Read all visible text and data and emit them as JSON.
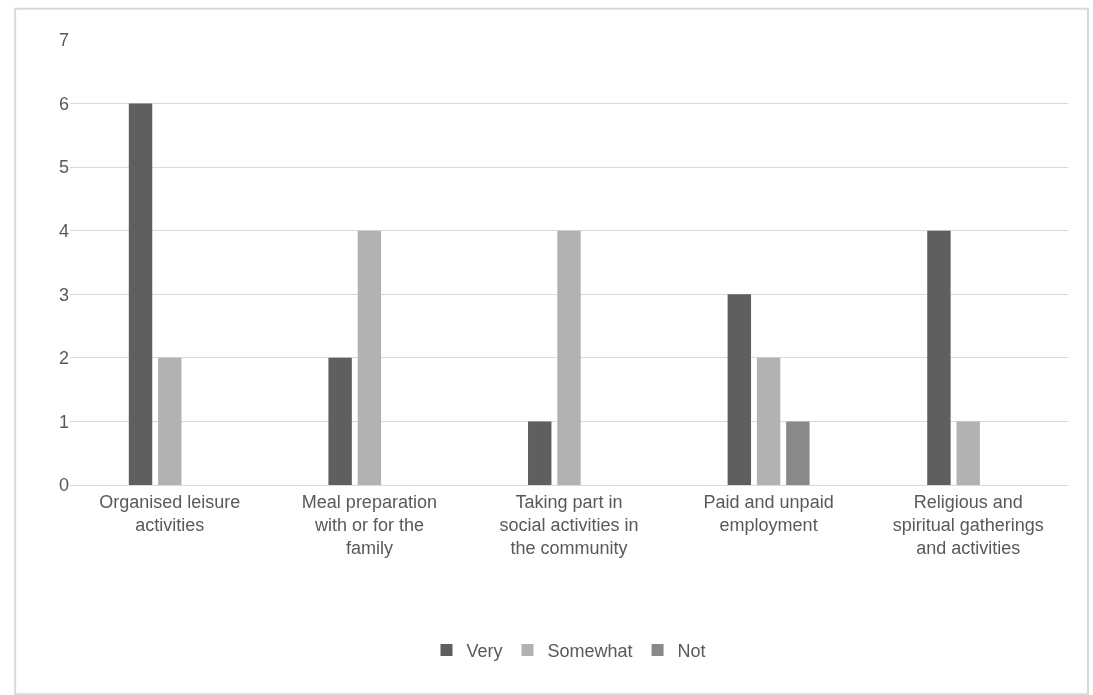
{
  "chart_data": {
    "type": "bar",
    "categories": [
      "Organised leisure activities",
      "Meal preparation with or for the family",
      "Taking part in social activities in the community",
      "Paid and unpaid employment",
      "Religious and spiritual gatherings and activities"
    ],
    "series": [
      {
        "name": "Very",
        "color": "#5f5f5f",
        "values": [
          6,
          2,
          1,
          3,
          4
        ]
      },
      {
        "name": "Somewhat",
        "color": "#b2b2b2",
        "values": [
          2,
          4,
          4,
          2,
          1
        ]
      },
      {
        "name": "Not",
        "color": "#898989",
        "values": [
          0,
          0,
          0,
          1,
          0
        ]
      }
    ],
    "ylim": [
      0,
      7
    ],
    "yticks": [
      0,
      1,
      2,
      3,
      4,
      5,
      6,
      7
    ],
    "grid": "y",
    "legend": "bottom"
  }
}
